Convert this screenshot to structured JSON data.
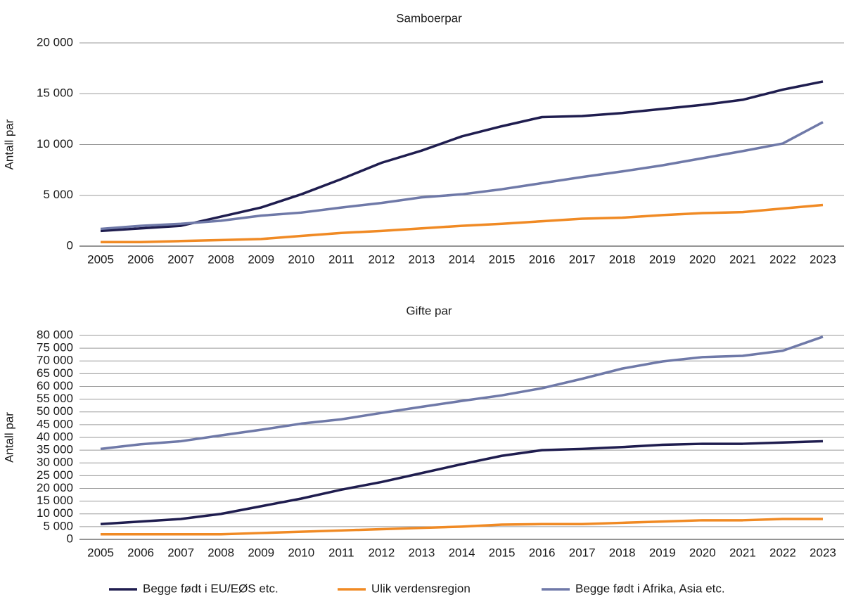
{
  "chart_data": [
    {
      "type": "line",
      "title": "Samboerpar",
      "ylabel": "Antall par",
      "categories": [
        "2005",
        "2006",
        "2007",
        "2008",
        "2009",
        "2010",
        "2011",
        "2012",
        "2013",
        "2014",
        "2015",
        "2016",
        "2017",
        "2018",
        "2019",
        "2020",
        "2021",
        "2022",
        "2023"
      ],
      "ylim": [
        0,
        20000
      ],
      "yticks": [
        0,
        {
          "value": 5000,
          "label": "5 000"
        },
        {
          "value": 10000,
          "label": "10 000"
        },
        {
          "value": 15000,
          "label": "15 000"
        },
        {
          "value": 20000,
          "label": "20 000"
        }
      ],
      "grid": true,
      "series": [
        {
          "name": "Begge født i EU/EØS etc.",
          "color": "#1f1d4f",
          "values": [
            1500,
            1750,
            2000,
            2900,
            3800,
            5100,
            6600,
            8200,
            9400,
            10800,
            11800,
            12700,
            12800,
            13100,
            13500,
            13900,
            14400,
            15400,
            16200
          ]
        },
        {
          "name": "Ulik verdensregion",
          "color": "#f08a24",
          "values": [
            400,
            400,
            500,
            600,
            700,
            1000,
            1300,
            1500,
            1750,
            2000,
            2200,
            2450,
            2700,
            2800,
            3050,
            3250,
            3350,
            3700,
            4050
          ]
        },
        {
          "name": "Begge født i Afrika, Asia etc.",
          "color": "#6f79a8",
          "values": [
            1700,
            2000,
            2200,
            2500,
            3000,
            3300,
            3800,
            4250,
            4800,
            5100,
            5600,
            6200,
            6800,
            7350,
            7950,
            8650,
            9350,
            10100,
            12200
          ]
        }
      ]
    },
    {
      "type": "line",
      "title": "Gifte par",
      "ylabel": "Antall par",
      "categories": [
        "2005",
        "2006",
        "2007",
        "2008",
        "2009",
        "2010",
        "2011",
        "2012",
        "2013",
        "2014",
        "2015",
        "2016",
        "2017",
        "2018",
        "2019",
        "2020",
        "2021",
        "2022",
        "2023"
      ],
      "ylim": [
        0,
        80000
      ],
      "yticks": [
        0,
        {
          "value": 5000,
          "label": "5 000"
        },
        {
          "value": 10000,
          "label": "10 000"
        },
        {
          "value": 15000,
          "label": "15 000"
        },
        {
          "value": 20000,
          "label": "20 000"
        },
        {
          "value": 25000,
          "label": "25 000"
        },
        {
          "value": 30000,
          "label": "30 000"
        },
        {
          "value": 35000,
          "label": "35 000"
        },
        {
          "value": 40000,
          "label": "40 000"
        },
        {
          "value": 45000,
          "label": "45 000"
        },
        {
          "value": 50000,
          "label": "50 000"
        },
        {
          "value": 55000,
          "label": "55 000"
        },
        {
          "value": 60000,
          "label": "60 000"
        },
        {
          "value": 65000,
          "label": "65 000"
        },
        {
          "value": 70000,
          "label": "70 000"
        },
        {
          "value": 75000,
          "label": "75 000"
        },
        {
          "value": 80000,
          "label": "80 000"
        }
      ],
      "grid": true,
      "series": [
        {
          "color": "#1f1d4f",
          "values": [
            6000,
            7000,
            8000,
            10000,
            13000,
            16000,
            19500,
            22500,
            26000,
            29500,
            32800,
            35000,
            35500,
            36200,
            37100,
            37500,
            37500,
            38000,
            38500
          ]
        },
        {
          "color": "#f08a24",
          "values": [
            2000,
            2000,
            2000,
            2000,
            2500,
            3000,
            3500,
            4000,
            4500,
            5000,
            5800,
            6000,
            6000,
            6500,
            7000,
            7500,
            7500,
            8000,
            8000
          ]
        },
        {
          "color": "#6f79a8",
          "values": [
            35500,
            37300,
            38500,
            40800,
            43000,
            45400,
            47100,
            49600,
            52000,
            54300,
            56500,
            59300,
            63000,
            67000,
            69800,
            71500,
            72000,
            74000,
            79500
          ]
        }
      ]
    }
  ]
}
